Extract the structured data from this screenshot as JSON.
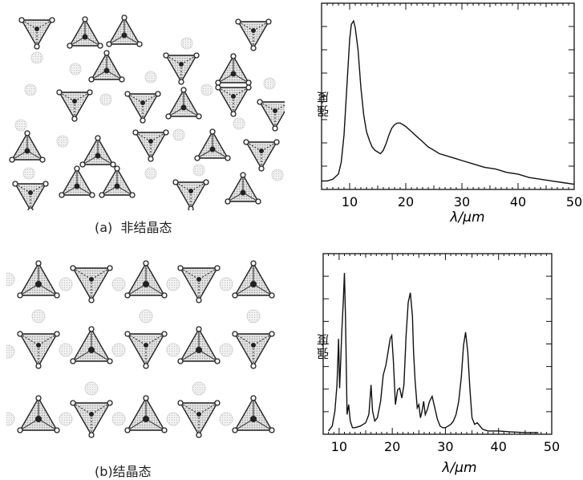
{
  "panel_a": {
    "caption_prefix": "(a)",
    "caption_text": "非结晶态",
    "axis": {
      "xlabel": "λ/μm",
      "ylabel": "强度",
      "xticks": [
        "10",
        "20",
        "30",
        "40",
        "50"
      ]
    }
  },
  "panel_b": {
    "caption_prefix": "(b)",
    "caption_text": "结晶态",
    "axis": {
      "xlabel": "λ/μm",
      "ylabel": "强度",
      "xticks": [
        "10",
        "20",
        "30",
        "40",
        "50"
      ]
    }
  },
  "chart_data": [
    {
      "type": "line",
      "title": "",
      "xlabel": "λ/μm",
      "ylabel": "强度",
      "xlim": [
        5,
        50
      ],
      "ylim": [
        0,
        1
      ],
      "series": [
        {
          "x": [
            5,
            6,
            7,
            8,
            8.5,
            9,
            9.5,
            10,
            10.3,
            10.7,
            11,
            11.5,
            12,
            12.5,
            13,
            13.5,
            14,
            14.5,
            15,
            15.5,
            16,
            16.5,
            17,
            17.5,
            18,
            18.5,
            19,
            19.5,
            20,
            21,
            22,
            23,
            24,
            25,
            26,
            27,
            28,
            29,
            30,
            32,
            34,
            36,
            38,
            40,
            42,
            44,
            46,
            48,
            50
          ],
          "y": [
            0.05,
            0.05,
            0.06,
            0.09,
            0.16,
            0.32,
            0.6,
            0.88,
            0.97,
            0.99,
            0.95,
            0.82,
            0.6,
            0.44,
            0.34,
            0.29,
            0.25,
            0.23,
            0.22,
            0.21,
            0.23,
            0.27,
            0.32,
            0.36,
            0.38,
            0.39,
            0.39,
            0.38,
            0.37,
            0.34,
            0.31,
            0.28,
            0.25,
            0.23,
            0.21,
            0.2,
            0.19,
            0.18,
            0.17,
            0.15,
            0.13,
            0.12,
            0.1,
            0.09,
            0.07,
            0.06,
            0.05,
            0.04,
            0.03
          ]
        }
      ]
    },
    {
      "type": "line",
      "title": "",
      "xlabel": "λ/μm",
      "ylabel": "强度",
      "xlim": [
        7,
        50
      ],
      "ylim": [
        0,
        1
      ],
      "series": [
        {
          "x": [
            8,
            8.7,
            9.2,
            9.6,
            9.9,
            10.1,
            10.3,
            10.5,
            10.8,
            11,
            11.2,
            11.5,
            11.8,
            12.1,
            12.5,
            13,
            14,
            15,
            15.6,
            16,
            16.3,
            16.7,
            17.2,
            17.8,
            18.3,
            18.8,
            19.2,
            19.6,
            19.9,
            20.2,
            20.6,
            21,
            21.4,
            21.8,
            22.2,
            22.6,
            23,
            23.4,
            23.8,
            24,
            24.3,
            24.7,
            25,
            25.3,
            25.6,
            25.9,
            26.2,
            26.6,
            27,
            27.5,
            28,
            28.5,
            29,
            29.5,
            30,
            30.5,
            31,
            31.5,
            32,
            32.5,
            33,
            33.4,
            33.8,
            34.2,
            34.6,
            35,
            35.5,
            36,
            36.5,
            37,
            38,
            40,
            42,
            45,
            47.5
          ],
          "y": [
            0.02,
            0.05,
            0.14,
            0.3,
            0.58,
            0.28,
            0.45,
            0.62,
            0.82,
            0.98,
            0.72,
            0.12,
            0.18,
            0.08,
            0.04,
            0.04,
            0.05,
            0.07,
            0.12,
            0.3,
            0.14,
            0.08,
            0.1,
            0.2,
            0.36,
            0.42,
            0.5,
            0.58,
            0.6,
            0.45,
            0.18,
            0.27,
            0.28,
            0.22,
            0.3,
            0.6,
            0.8,
            0.86,
            0.72,
            0.5,
            0.32,
            0.16,
            0.18,
            0.1,
            0.14,
            0.2,
            0.12,
            0.15,
            0.2,
            0.23,
            0.16,
            0.09,
            0.05,
            0.04,
            0.04,
            0.05,
            0.06,
            0.08,
            0.12,
            0.2,
            0.35,
            0.54,
            0.62,
            0.5,
            0.28,
            0.1,
            0.06,
            0.07,
            0.05,
            0.03,
            0.02,
            0.02,
            0.015,
            0.01,
            0.01
          ]
        }
      ]
    }
  ]
}
